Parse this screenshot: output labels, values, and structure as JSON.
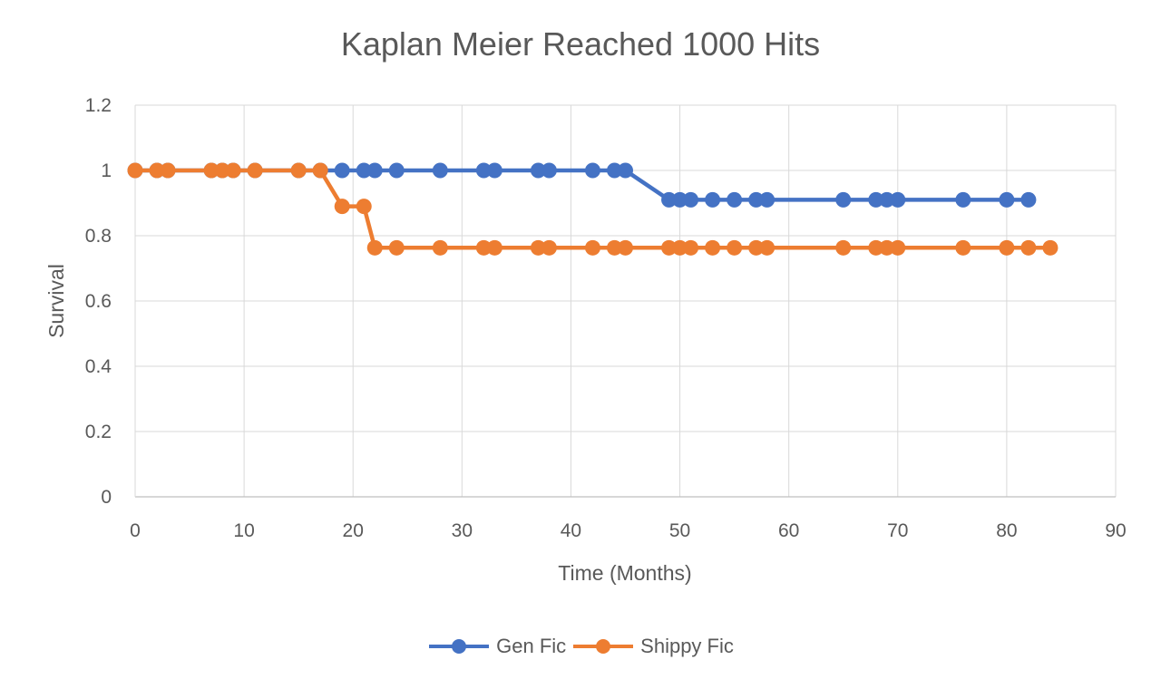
{
  "chart_data": {
    "type": "line",
    "title": "Kaplan Meier Reached 1000 Hits",
    "xlabel": "Time (Months)",
    "ylabel": "Survival",
    "xlim": [
      0,
      90
    ],
    "ylim": [
      0,
      1.2
    ],
    "x_ticks": [
      "0",
      "10",
      "20",
      "30",
      "40",
      "50",
      "60",
      "70",
      "80",
      "90"
    ],
    "y_ticks": [
      "0",
      "0.2",
      "0.4",
      "0.6",
      "0.8",
      "1",
      "1.2"
    ],
    "grid": true,
    "legend_position": "bottom",
    "series": [
      {
        "name": "Gen Fic",
        "color": "#4472C4",
        "x": [
          0,
          2,
          3,
          7,
          8,
          9,
          11,
          15,
          17,
          19,
          21,
          22,
          24,
          28,
          32,
          33,
          37,
          38,
          42,
          44,
          45,
          49,
          50,
          51,
          53,
          55,
          57,
          58,
          65,
          68,
          69,
          70,
          76,
          80,
          82
        ],
        "y": [
          1,
          1,
          1,
          1,
          1,
          1,
          1,
          1,
          1,
          1,
          1,
          1,
          1,
          1,
          1,
          1,
          1,
          1,
          1,
          1,
          1,
          0.91,
          0.91,
          0.91,
          0.91,
          0.91,
          0.91,
          0.91,
          0.91,
          0.91,
          0.91,
          0.91,
          0.91,
          0.91,
          0.91
        ]
      },
      {
        "name": "Shippy Fic",
        "color": "#ED7D31",
        "x": [
          0,
          2,
          3,
          7,
          8,
          9,
          11,
          15,
          17,
          19,
          21,
          22,
          24,
          28,
          32,
          33,
          37,
          38,
          42,
          44,
          45,
          49,
          50,
          51,
          53,
          55,
          57,
          58,
          65,
          68,
          69,
          70,
          76,
          80,
          82,
          84
        ],
        "y": [
          1,
          1,
          1,
          1,
          1,
          1,
          1,
          1,
          1,
          0.89,
          0.89,
          0.763,
          0.763,
          0.763,
          0.763,
          0.763,
          0.763,
          0.763,
          0.763,
          0.763,
          0.763,
          0.763,
          0.763,
          0.763,
          0.763,
          0.763,
          0.763,
          0.763,
          0.763,
          0.763,
          0.763,
          0.763,
          0.763,
          0.763,
          0.763,
          0.763
        ]
      }
    ]
  }
}
